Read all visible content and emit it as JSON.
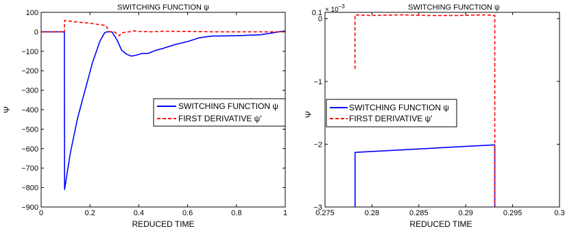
{
  "chart_data": [
    {
      "type": "line",
      "title": "SWITCHING FUNCTION ψ",
      "xlabel": "REDUCED TIME",
      "ylabel": "Ψ",
      "xlim": [
        0,
        1
      ],
      "ylim": [
        -900,
        100
      ],
      "xticks": [
        0,
        0.2,
        0.4,
        0.6,
        0.8,
        1
      ],
      "xtick_labels": [
        "0",
        "0.2",
        "0.4",
        "0.6",
        "0.8",
        "1"
      ],
      "yticks": [
        -900,
        -800,
        -700,
        -600,
        -500,
        -400,
        -300,
        -200,
        -100,
        0,
        100
      ],
      "ytick_labels": [
        "−900",
        "−800",
        "−700",
        "−600",
        "−500",
        "−400",
        "−300",
        "−200",
        "−100",
        "0",
        "100"
      ],
      "grid": false,
      "legend_position": "center-right",
      "series": [
        {
          "name": "SWITCHING FUNCTION ψ",
          "color": "#0000ff",
          "style": "solid",
          "points": [
            [
              0,
              0
            ],
            [
              0.095,
              0
            ],
            [
              0.096,
              -810
            ],
            [
              0.12,
              -620
            ],
            [
              0.15,
              -440
            ],
            [
              0.18,
              -300
            ],
            [
              0.21,
              -160
            ],
            [
              0.24,
              -50
            ],
            [
              0.26,
              -5
            ],
            [
              0.27,
              0
            ],
            [
              0.29,
              0
            ],
            [
              0.31,
              -40
            ],
            [
              0.33,
              -95
            ],
            [
              0.35,
              -115
            ],
            [
              0.37,
              -125
            ],
            [
              0.39,
              -120
            ],
            [
              0.41,
              -112
            ],
            [
              0.44,
              -110
            ],
            [
              0.47,
              -95
            ],
            [
              0.5,
              -85
            ],
            [
              0.55,
              -65
            ],
            [
              0.6,
              -50
            ],
            [
              0.65,
              -30
            ],
            [
              0.7,
              -22
            ],
            [
              0.8,
              -20
            ],
            [
              0.9,
              -15
            ],
            [
              0.95,
              -5
            ],
            [
              1.0,
              5
            ]
          ]
        },
        {
          "name": "FIRST DERIVATIVE ψ'",
          "color": "#ff0000",
          "style": "dashed",
          "points": [
            [
              0,
              0
            ],
            [
              0.095,
              0
            ],
            [
              0.096,
              58
            ],
            [
              0.15,
              50
            ],
            [
              0.2,
              44
            ],
            [
              0.25,
              35
            ],
            [
              0.265,
              33
            ],
            [
              0.28,
              0
            ],
            [
              0.3,
              0
            ],
            [
              0.32,
              -20
            ],
            [
              0.33,
              -5
            ],
            [
              0.36,
              0
            ],
            [
              0.38,
              5
            ],
            [
              0.4,
              2
            ],
            [
              0.45,
              0
            ],
            [
              0.5,
              3
            ],
            [
              0.6,
              2
            ],
            [
              0.7,
              0
            ],
            [
              0.8,
              0
            ],
            [
              0.9,
              0
            ],
            [
              1.0,
              0
            ]
          ]
        }
      ]
    },
    {
      "type": "line",
      "title": "SWITCHING FUNCTION ψ",
      "xlabel": "REDUCED TIME",
      "ylabel": "Ψ",
      "xlim": [
        0.275,
        0.3
      ],
      "ylim": [
        -0.003,
        0.0001
      ],
      "y_exponent_label": "× 10",
      "y_exponent": "−3",
      "xticks": [
        0.275,
        0.28,
        0.285,
        0.29,
        0.295,
        0.3
      ],
      "xtick_labels": [
        "0.275",
        "0.28",
        "0.285",
        "0.29",
        "0.295",
        "0.3"
      ],
      "yticks": [
        -0.003,
        -0.002,
        -0.001,
        0,
        0.0001
      ],
      "ytick_labels": [
        "−3",
        "−2",
        "−1",
        "0",
        "0.1"
      ],
      "grid": false,
      "legend_position": "center-left",
      "series": [
        {
          "name": "SWITCHING FUNCTION ψ",
          "color": "#0000ff",
          "style": "solid",
          "points": [
            [
              0.2782,
              -0.0031
            ],
            [
              0.2782,
              -0.00213
            ],
            [
              0.2931,
              -0.00201
            ],
            [
              0.2931,
              -0.0031
            ]
          ]
        },
        {
          "name": "FIRST DERIVATIVE ψ'",
          "color": "#ff0000",
          "style": "dashed",
          "points": [
            [
              0.2782,
              -0.0008
            ],
            [
              0.2782,
              6e-05
            ],
            [
              0.28,
              5e-05
            ],
            [
              0.283,
              6e-05
            ],
            [
              0.286,
              5e-05
            ],
            [
              0.289,
              5e-05
            ],
            [
              0.292,
              6e-05
            ],
            [
              0.2931,
              5e-05
            ],
            [
              0.2931,
              -0.0031
            ]
          ]
        }
      ]
    }
  ]
}
